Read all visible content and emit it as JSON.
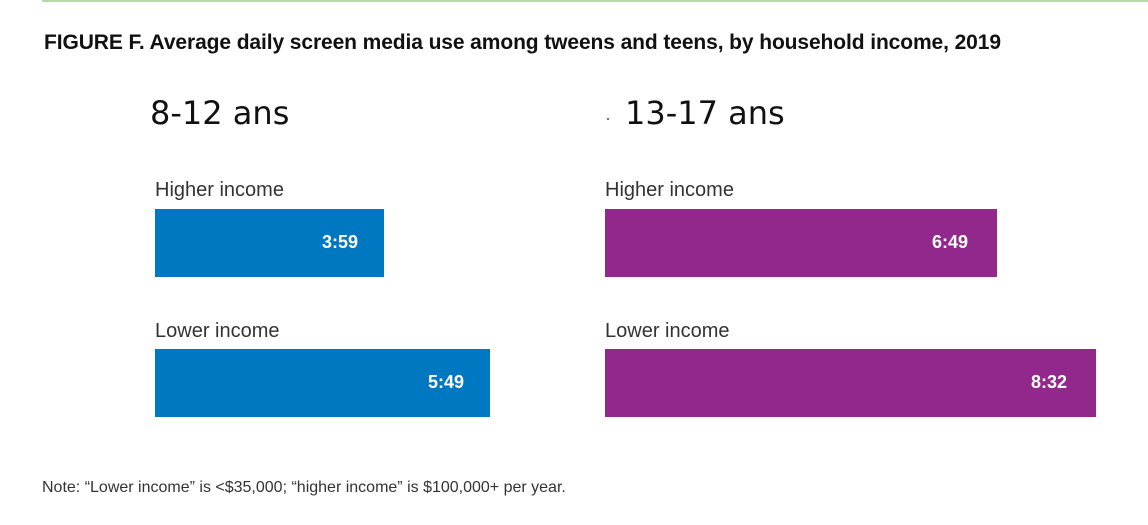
{
  "title": "FIGURE F. Average daily screen media use among tweens and teens, by household income, 2019",
  "note": "Note: “Lower income” is <$35,000; “higher income” is $100,000+ per year.",
  "colors": {
    "tweens": "#0078c1",
    "teens": "#93288c"
  },
  "chart_data": [
    {
      "type": "bar",
      "orientation": "horizontal",
      "title": "8-12 ans",
      "categories": [
        "Higher income",
        "Lower income"
      ],
      "values": [
        "3:59",
        "5:49"
      ],
      "values_minutes": [
        239,
        349
      ],
      "color": "#0078c1"
    },
    {
      "type": "bar",
      "orientation": "horizontal",
      "title": "13-17 ans",
      "categories": [
        "Higher income",
        "Lower income"
      ],
      "values": [
        "6:49",
        "8:32"
      ],
      "values_minutes": [
        409,
        512
      ],
      "color": "#93288c"
    }
  ]
}
